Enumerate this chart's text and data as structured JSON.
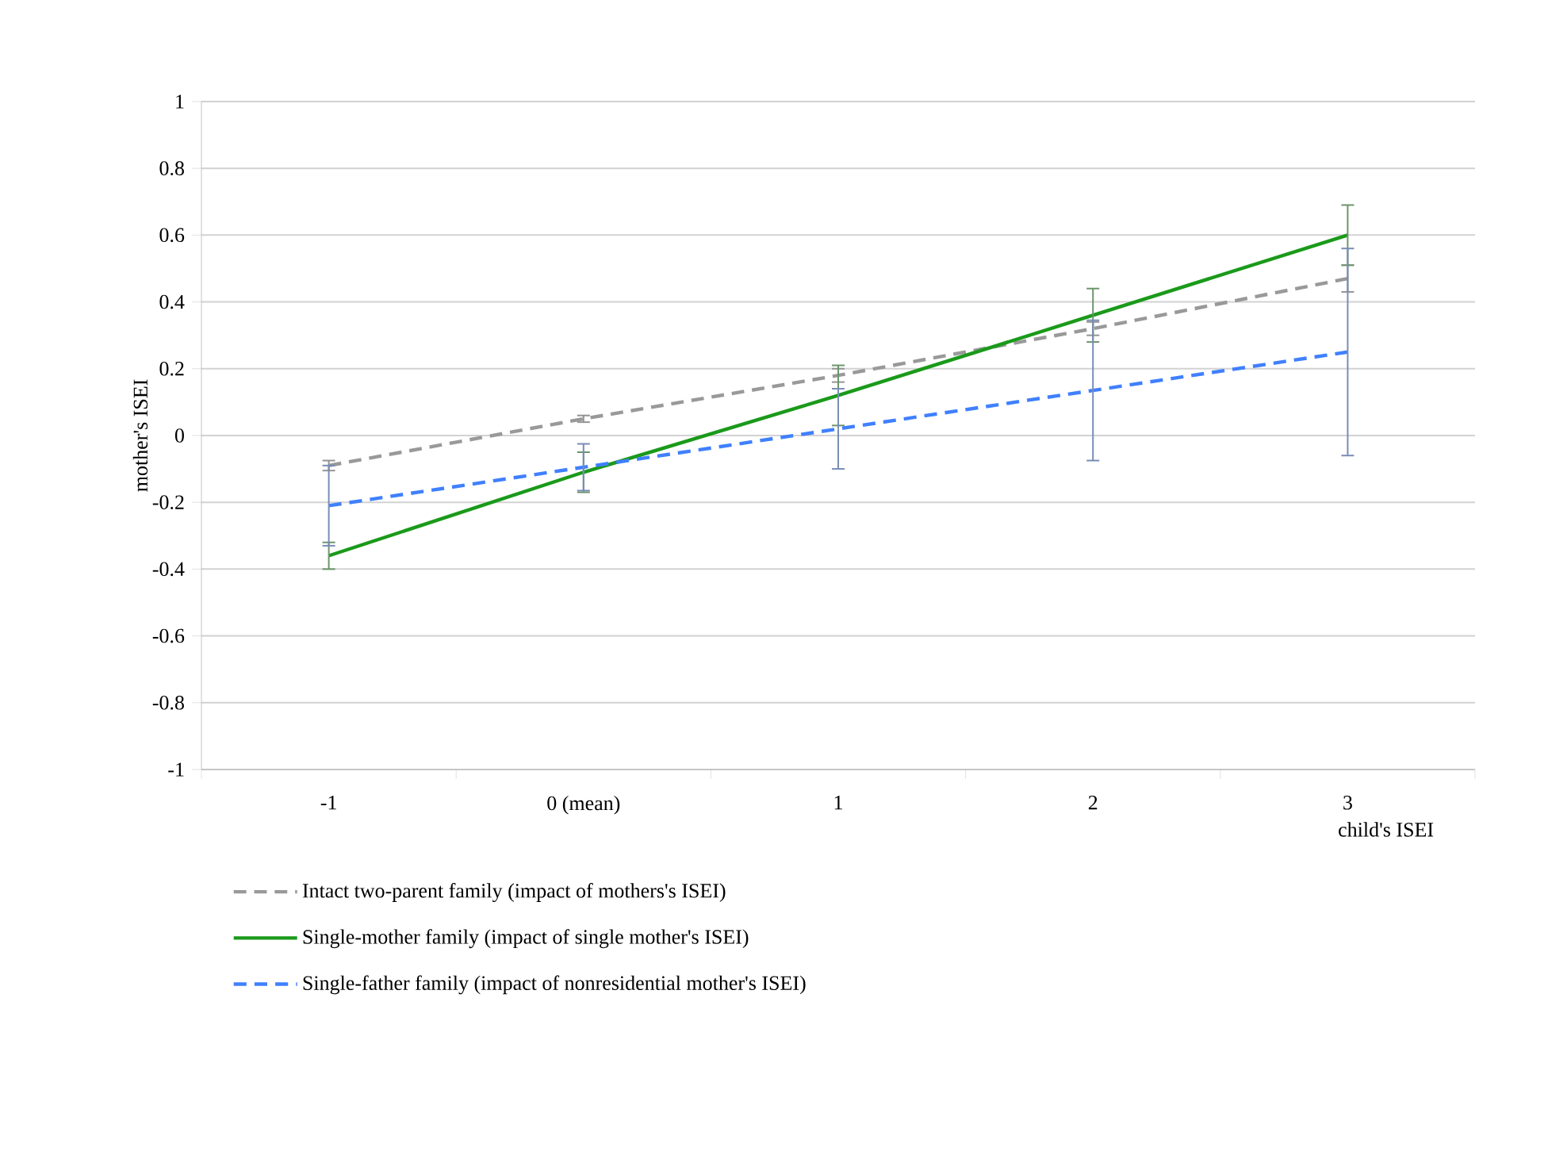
{
  "chart_data": {
    "type": "line",
    "ylabel": "mother's ISEI",
    "xlabel": "child's ISEI",
    "categories": [
      "-1",
      "0 (mean)",
      "1",
      "2",
      "3"
    ],
    "ylim": [
      -1,
      1
    ],
    "yticks": [
      -1,
      -0.8,
      -0.6,
      -0.4,
      -0.2,
      0,
      0.2,
      0.4,
      0.6,
      0.8,
      1
    ],
    "grid": "y",
    "legend": "bottom",
    "marker": "none",
    "series": [
      {
        "name": "Intact two-parent family (impact of mothers's ISEI)",
        "color": "#999999",
        "line_style": "dashed",
        "values": [
          -0.09,
          0.05,
          0.18,
          0.32,
          0.47
        ],
        "errors": [
          0.015,
          0.01,
          0.02,
          0.02,
          0.04
        ]
      },
      {
        "name": "Single-mother family (impact of single mother's ISEI)",
        "color": "#1a9a1a",
        "line_style": "solid",
        "values": [
          -0.36,
          -0.11,
          0.12,
          0.36,
          0.6
        ],
        "errors": [
          0.04,
          0.06,
          0.09,
          0.08,
          0.09
        ]
      },
      {
        "name": "Single-father family (impact of nonresidential mother's ISEI)",
        "color": "#4080ff",
        "line_style": "dashed",
        "values": [
          -0.21,
          -0.095,
          0.02,
          0.135,
          0.25
        ],
        "errors": [
          0.12,
          0.07,
          0.12,
          0.21,
          0.31
        ]
      }
    ]
  }
}
